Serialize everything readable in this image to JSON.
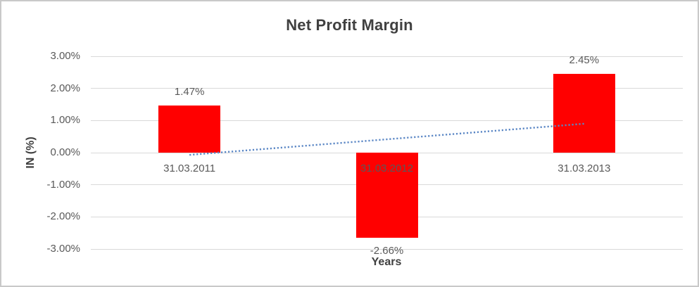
{
  "window": {
    "background_color": "#ffffff",
    "border_color": "#c9c9c9"
  },
  "chart_data": {
    "type": "bar",
    "title": "Net Profit Margin",
    "xlabel": "Years",
    "ylabel": "IN (%)",
    "categories": [
      "31.03.2011",
      "31.03.2012",
      "31.03.2013"
    ],
    "values": [
      1.47,
      -2.66,
      2.45
    ],
    "data_labels": [
      "1.47%",
      "-2.66%",
      "2.45%"
    ],
    "ylim": [
      -3,
      3
    ],
    "ytick_labels": [
      "3.00%",
      "2.00%",
      "1.00%",
      "0.00%",
      "-1.00%",
      "-2.00%",
      "-3.00%"
    ],
    "grid": true,
    "legend": "none",
    "bar_color": "#ff0000",
    "gridline_color": "#d9d9d9",
    "label_color": "#595959",
    "title_color": "#404040",
    "trendline": {
      "type": "linear",
      "style": "dotted",
      "color": "#5b87c5",
      "start_value": -0.07,
      "end_value": 0.9
    }
  }
}
